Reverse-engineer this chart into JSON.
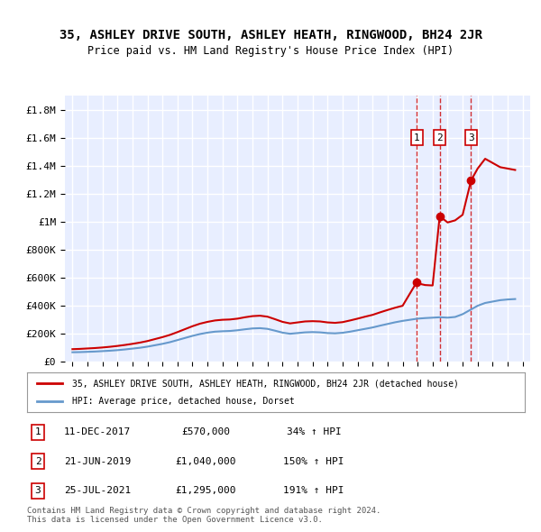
{
  "title": "35, ASHLEY DRIVE SOUTH, ASHLEY HEATH, RINGWOOD, BH24 2JR",
  "subtitle": "Price paid vs. HM Land Registry's House Price Index (HPI)",
  "ylabel_ticks": [
    "£0",
    "£200K",
    "£400K",
    "£600K",
    "£800K",
    "£1M",
    "£1.2M",
    "£1.4M",
    "£1.6M",
    "£1.8M"
  ],
  "ylabel_values": [
    0,
    200000,
    400000,
    600000,
    800000,
    1000000,
    1200000,
    1400000,
    1600000,
    1800000
  ],
  "ylim": [
    0,
    1900000
  ],
  "xlim_start": 1994.5,
  "xlim_end": 2025.5,
  "background_color": "#f0f4ff",
  "plot_bg_color": "#e8eeff",
  "grid_color": "#ffffff",
  "legend_label_red": "35, ASHLEY DRIVE SOUTH, ASHLEY HEATH, RINGWOOD, BH24 2JR (detached house)",
  "legend_label_blue": "HPI: Average price, detached house, Dorset",
  "footer": "Contains HM Land Registry data © Crown copyright and database right 2024.\nThis data is licensed under the Open Government Licence v3.0.",
  "transactions": [
    {
      "num": 1,
      "date": "11-DEC-2017",
      "price": "£570,000",
      "change": "34% ↑ HPI",
      "year": 2017.95
    },
    {
      "num": 2,
      "date": "21-JUN-2019",
      "price": "£1,040,000",
      "change": "150% ↑ HPI",
      "year": 2019.47
    },
    {
      "num": 3,
      "date": "25-JUL-2021",
      "price": "£1,295,000",
      "change": "191% ↑ HPI",
      "year": 2021.56
    }
  ],
  "hpi_x": [
    1995,
    1995.5,
    1996,
    1996.5,
    1997,
    1997.5,
    1998,
    1998.5,
    1999,
    1999.5,
    2000,
    2000.5,
    2001,
    2001.5,
    2002,
    2002.5,
    2003,
    2003.5,
    2004,
    2004.5,
    2005,
    2005.5,
    2006,
    2006.5,
    2007,
    2007.5,
    2008,
    2008.5,
    2009,
    2009.5,
    2010,
    2010.5,
    2011,
    2011.5,
    2012,
    2012.5,
    2013,
    2013.5,
    2014,
    2014.5,
    2015,
    2015.5,
    2016,
    2016.5,
    2017,
    2017.5,
    2018,
    2018.5,
    2019,
    2019.5,
    2020,
    2020.5,
    2021,
    2021.5,
    2022,
    2022.5,
    2023,
    2023.5,
    2024,
    2024.5
  ],
  "hpi_y": [
    68000,
    69000,
    71000,
    73000,
    76000,
    79000,
    83000,
    88000,
    94000,
    100000,
    108000,
    118000,
    128000,
    140000,
    155000,
    170000,
    185000,
    198000,
    208000,
    215000,
    218000,
    220000,
    225000,
    232000,
    238000,
    240000,
    235000,
    222000,
    208000,
    200000,
    205000,
    210000,
    212000,
    210000,
    205000,
    203000,
    207000,
    215000,
    225000,
    235000,
    245000,
    258000,
    270000,
    282000,
    292000,
    300000,
    308000,
    312000,
    315000,
    318000,
    315000,
    320000,
    340000,
    370000,
    400000,
    420000,
    430000,
    440000,
    445000,
    448000
  ],
  "red_x": [
    1995,
    1995.5,
    1996,
    1996.5,
    1997,
    1997.5,
    1998,
    1998.5,
    1999,
    1999.5,
    2000,
    2000.5,
    2001,
    2001.5,
    2002,
    2002.5,
    2003,
    2003.5,
    2004,
    2004.5,
    2005,
    2005.5,
    2006,
    2006.5,
    2007,
    2007.5,
    2008,
    2008.5,
    2009,
    2009.5,
    2010,
    2010.5,
    2011,
    2011.5,
    2012,
    2012.5,
    2013,
    2013.5,
    2014,
    2014.5,
    2015,
    2015.5,
    2016,
    2016.5,
    2017,
    2017.95,
    2018,
    2018.5,
    2019,
    2019.47,
    2020,
    2020.5,
    2021,
    2021.56,
    2022,
    2022.5,
    2023,
    2023.5,
    2024,
    2024.5
  ],
  "red_y": [
    90000,
    92000,
    95000,
    98000,
    102000,
    107000,
    113000,
    120000,
    128000,
    137000,
    148000,
    162000,
    176000,
    192000,
    212000,
    233000,
    254000,
    272000,
    285000,
    295000,
    300000,
    302000,
    308000,
    318000,
    326000,
    329000,
    322000,
    304000,
    285000,
    274000,
    281000,
    288000,
    290000,
    288000,
    281000,
    278000,
    283000,
    295000,
    308000,
    322000,
    335000,
    353000,
    370000,
    386000,
    400000,
    570000,
    560000,
    548000,
    545000,
    1040000,
    995000,
    1010000,
    1050000,
    1295000,
    1380000,
    1450000,
    1420000,
    1390000,
    1380000,
    1370000
  ]
}
